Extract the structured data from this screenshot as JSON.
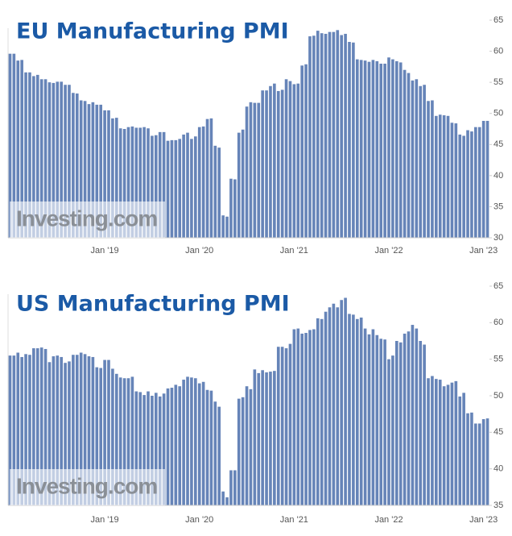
{
  "chart_data": [
    {
      "type": "bar",
      "title": "EU Manufacturing PMI",
      "watermark": "Investing.com",
      "color": "#6684b8",
      "ylim": [
        30,
        65
      ],
      "yticks": [
        30,
        35,
        40,
        45,
        50,
        55,
        60,
        65
      ],
      "categories": [
        null,
        null,
        null,
        null,
        null,
        null,
        null,
        null,
        null,
        null,
        null,
        null,
        null,
        null,
        null,
        null,
        null,
        null,
        null,
        null,
        null,
        null,
        null,
        null,
        "Jan '19",
        null,
        null,
        null,
        null,
        null,
        null,
        null,
        null,
        null,
        null,
        null,
        null,
        null,
        null,
        null,
        null,
        null,
        null,
        null,
        null,
        null,
        null,
        null,
        "Jan '20",
        null,
        null,
        null,
        null,
        null,
        null,
        null,
        null,
        null,
        null,
        null,
        null,
        null,
        null,
        null,
        null,
        null,
        null,
        null,
        null,
        null,
        null,
        null,
        "Jan '21",
        null,
        null,
        null,
        null,
        null,
        null,
        null,
        null,
        null,
        null,
        null,
        null,
        null,
        null,
        null,
        null,
        null,
        null,
        null,
        null,
        null,
        null,
        null,
        "Jan '22",
        null,
        null,
        null,
        null,
        null,
        null,
        null,
        null,
        null,
        null,
        null,
        null,
        null,
        null,
        null,
        null,
        null,
        null,
        null,
        null,
        null,
        null,
        null,
        "Jan '23",
        null
      ],
      "values": [
        59.6,
        59.6,
        58.5,
        58.6,
        56.6,
        56.6,
        56.0,
        56.2,
        55.5,
        55.5,
        55.0,
        54.9,
        55.1,
        55.1,
        54.6,
        54.6,
        53.3,
        53.2,
        52.1,
        52.0,
        51.5,
        51.8,
        51.4,
        51.4,
        50.5,
        50.5,
        49.2,
        49.3,
        47.6,
        47.5,
        47.8,
        47.9,
        47.7,
        47.7,
        47.8,
        47.6,
        46.4,
        46.5,
        47.0,
        47.0,
        45.6,
        45.7,
        45.7,
        45.9,
        46.6,
        46.9,
        45.9,
        46.3,
        47.8,
        47.9,
        49.1,
        49.2,
        44.8,
        44.5,
        33.6,
        33.4,
        39.5,
        39.4,
        46.9,
        47.4,
        51.1,
        51.8,
        51.7,
        51.7,
        53.7,
        53.7,
        54.4,
        54.8,
        53.6,
        53.8,
        55.5,
        55.2,
        54.7,
        54.8,
        57.7,
        57.9,
        62.4,
        62.5,
        63.3,
        62.9,
        62.8,
        63.1,
        63.1,
        63.4,
        62.6,
        62.8,
        61.5,
        61.4,
        58.7,
        58.6,
        58.5,
        58.3,
        58.6,
        58.4,
        58.0,
        58.0,
        59.0,
        58.7,
        58.4,
        58.2,
        57.0,
        56.5,
        55.3,
        55.5,
        54.4,
        54.6,
        52.0,
        52.1,
        49.6,
        49.8,
        49.7,
        49.6,
        48.5,
        48.4,
        46.6,
        46.4,
        47.3,
        47.1,
        47.8,
        47.8,
        48.8,
        48.8
      ]
    },
    {
      "type": "bar",
      "title": "US Manufacturing PMI",
      "watermark": "Investing.com",
      "color": "#6684b8",
      "ylim": [
        35,
        65
      ],
      "yticks": [
        35,
        40,
        45,
        50,
        55,
        60,
        65
      ],
      "categories": [
        null,
        null,
        null,
        null,
        null,
        null,
        null,
        null,
        null,
        null,
        null,
        null,
        null,
        null,
        null,
        null,
        null,
        null,
        null,
        null,
        null,
        null,
        null,
        null,
        "Jan '19",
        null,
        null,
        null,
        null,
        null,
        null,
        null,
        null,
        null,
        null,
        null,
        null,
        null,
        null,
        null,
        null,
        null,
        null,
        null,
        null,
        null,
        null,
        null,
        "Jan '20",
        null,
        null,
        null,
        null,
        null,
        null,
        null,
        null,
        null,
        null,
        null,
        null,
        null,
        null,
        null,
        null,
        null,
        null,
        null,
        null,
        null,
        null,
        null,
        "Jan '21",
        null,
        null,
        null,
        null,
        null,
        null,
        null,
        null,
        null,
        null,
        null,
        null,
        null,
        null,
        null,
        null,
        null,
        null,
        null,
        null,
        null,
        null,
        null,
        "Jan '22",
        null,
        null,
        null,
        null,
        null,
        null,
        null,
        null,
        null,
        null,
        null,
        null,
        null,
        null,
        null,
        null,
        null,
        null,
        null,
        null,
        null,
        null,
        null,
        "Jan '23",
        null
      ],
      "values": [
        55.5,
        55.5,
        55.9,
        55.3,
        55.7,
        55.6,
        56.5,
        56.5,
        56.6,
        56.4,
        54.6,
        55.4,
        55.5,
        55.3,
        54.5,
        54.7,
        55.6,
        55.6,
        55.9,
        55.7,
        55.4,
        55.3,
        53.9,
        53.8,
        54.9,
        54.9,
        53.7,
        53.0,
        52.5,
        52.4,
        52.4,
        52.6,
        50.6,
        50.5,
        50.1,
        50.6,
        50.0,
        50.4,
        49.9,
        50.3,
        51.0,
        51.1,
        51.5,
        51.3,
        52.2,
        52.6,
        52.5,
        52.4,
        51.7,
        51.9,
        50.8,
        50.7,
        49.2,
        48.5,
        36.9,
        36.1,
        39.8,
        39.8,
        49.6,
        49.8,
        51.3,
        50.9,
        53.6,
        53.1,
        53.5,
        53.2,
        53.3,
        53.4,
        56.7,
        56.7,
        56.5,
        57.1,
        59.1,
        59.2,
        58.5,
        58.6,
        59.0,
        59.1,
        60.6,
        60.5,
        61.5,
        62.1,
        62.6,
        62.1,
        63.1,
        63.4,
        61.2,
        61.1,
        60.5,
        60.7,
        59.2,
        58.4,
        59.1,
        58.3,
        57.8,
        57.7,
        55.0,
        55.5,
        57.5,
        57.3,
        58.5,
        58.8,
        59.7,
        59.2,
        57.5,
        57.0,
        52.4,
        52.7,
        52.3,
        52.2,
        51.3,
        51.5,
        51.8,
        52.0,
        49.9,
        50.4,
        47.6,
        47.7,
        46.2,
        46.2,
        46.8,
        46.9
      ]
    }
  ]
}
